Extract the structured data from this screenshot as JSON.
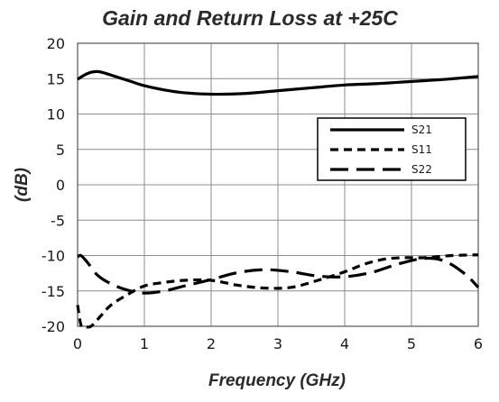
{
  "chart_data": {
    "type": "line",
    "title": "Gain and Return Loss at +25C",
    "xlabel": "Frequency (GHz)",
    "ylabel": "(dB)",
    "xlim": [
      0,
      6
    ],
    "ylim": [
      -20,
      20
    ],
    "xticks": [
      "0",
      "1",
      "2",
      "3",
      "4",
      "5",
      "6"
    ],
    "yticks": [
      "20",
      "15",
      "10",
      "5",
      "0",
      "-5",
      "-10",
      "-15",
      "-20"
    ],
    "grid": true,
    "legend_position": "right",
    "series": [
      {
        "name": "S21",
        "style": "solid",
        "color": "#000000",
        "x": [
          0,
          0.1,
          0.2,
          0.3,
          0.4,
          0.6,
          0.8,
          1.0,
          1.3,
          1.6,
          2.0,
          2.5,
          3.0,
          3.5,
          4.0,
          4.5,
          5.0,
          5.5,
          6.0
        ],
        "y": [
          14.9,
          15.5,
          15.9,
          16.0,
          15.8,
          15.2,
          14.6,
          14.0,
          13.4,
          13.0,
          12.8,
          12.9,
          13.3,
          13.7,
          14.1,
          14.3,
          14.6,
          14.9,
          15.3
        ]
      },
      {
        "name": "S11",
        "style": "short-dash",
        "color": "#000000",
        "x": [
          0,
          0.05,
          0.1,
          0.2,
          0.35,
          0.5,
          0.75,
          1.0,
          1.3,
          1.6,
          2.0,
          2.4,
          2.8,
          3.2,
          3.6,
          4.0,
          4.3,
          4.6,
          4.9,
          5.2,
          5.6,
          6.0
        ],
        "y": [
          -17.0,
          -19.8,
          -20.0,
          -20.0,
          -18.5,
          -17.0,
          -15.5,
          -14.3,
          -13.8,
          -13.5,
          -13.5,
          -14.2,
          -14.6,
          -14.5,
          -13.5,
          -12.3,
          -11.2,
          -10.5,
          -10.3,
          -10.3,
          -10.0,
          -9.9
        ]
      },
      {
        "name": "S22",
        "style": "long-dash",
        "color": "#000000",
        "x": [
          0,
          0.05,
          0.15,
          0.3,
          0.5,
          0.75,
          1.0,
          1.3,
          1.6,
          2.0,
          2.4,
          2.8,
          3.2,
          3.6,
          4.0,
          4.4,
          4.8,
          5.2,
          5.5,
          5.8,
          6.0
        ],
        "y": [
          -10.2,
          -10.0,
          -11.0,
          -12.8,
          -14.0,
          -14.9,
          -15.3,
          -15.0,
          -14.3,
          -13.4,
          -12.4,
          -12.0,
          -12.3,
          -12.9,
          -13.0,
          -12.4,
          -11.2,
          -10.4,
          -10.8,
          -12.6,
          -14.5
        ]
      }
    ]
  }
}
